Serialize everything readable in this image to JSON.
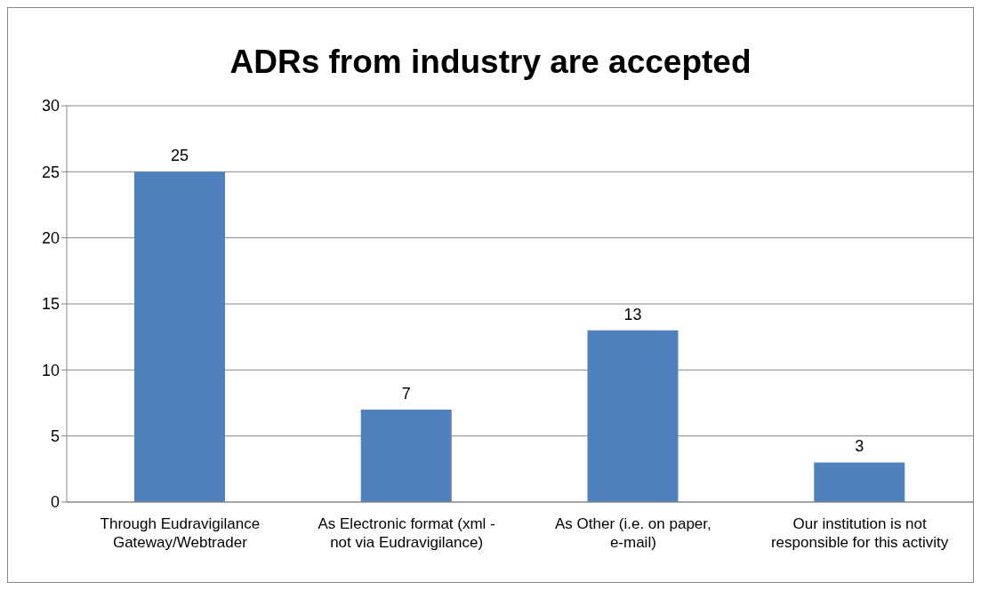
{
  "chart_data": {
    "type": "bar",
    "title": "ADRs from industry are accepted",
    "categories": [
      "Through Eudravigilance Gateway/Webtrader",
      "As Electronic format (xml - not via Eudravigilance)",
      "As Other (i.e. on paper, e-mail)",
      "Our institution is not responsible for this activity"
    ],
    "values": [
      25,
      7,
      13,
      3
    ],
    "color": "#4f81bd",
    "ylim": [
      0,
      30
    ],
    "yticks": [
      0,
      5,
      10,
      15,
      20,
      25,
      30
    ],
    "grid": "y",
    "data_labels": true,
    "legend": false
  }
}
